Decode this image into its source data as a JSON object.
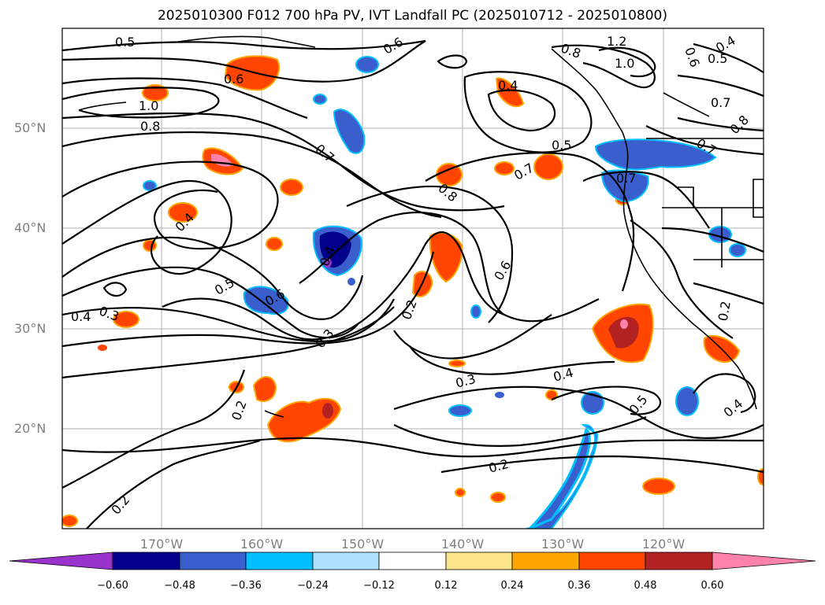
{
  "title": "2025010300 F012 700 hPa PV, IVT Landfall PC (2025010712 - 2025010800)",
  "lat_labels": [
    "50°N",
    "40°N",
    "30°N",
    "20°N"
  ],
  "lon_labels": [
    "170°W",
    "160°W",
    "150°W",
    "140°W",
    "130°W",
    "120°W"
  ],
  "colorbar": {
    "ticks": [
      "−0.60",
      "−0.48",
      "−0.36",
      "−0.24",
      "−0.12",
      "0.12",
      "0.24",
      "0.36",
      "0.48",
      "0.60"
    ],
    "colors": [
      "#9a33cc",
      "#00008b",
      "#3a5fcd",
      "#00bfff",
      "#b0e2ff",
      "#ffffff",
      "#fde68a",
      "#ffa500",
      "#ff4500",
      "#b22222",
      "#ff82ab"
    ]
  },
  "contour_labels": [
    {
      "text": "0.5"
    },
    {
      "text": "0.6"
    },
    {
      "text": "1.2"
    },
    {
      "text": "0.4"
    },
    {
      "text": "0.5"
    },
    {
      "text": "0.8"
    },
    {
      "text": "1.0"
    },
    {
      "text": "0.6"
    },
    {
      "text": "0.6"
    },
    {
      "text": "0.4"
    },
    {
      "text": "0.7"
    },
    {
      "text": "0.8"
    },
    {
      "text": "1.0"
    },
    {
      "text": "0.8"
    },
    {
      "text": "0.7"
    },
    {
      "text": "0.5"
    },
    {
      "text": "0.7"
    },
    {
      "text": "0.7"
    },
    {
      "text": "0.8"
    },
    {
      "text": "0.7"
    },
    {
      "text": "0.4"
    },
    {
      "text": "0.4"
    },
    {
      "text": "0.6"
    },
    {
      "text": "0.5"
    },
    {
      "text": "0.6"
    },
    {
      "text": "0.3"
    },
    {
      "text": "0.4"
    },
    {
      "text": "0.3"
    },
    {
      "text": "0.2"
    },
    {
      "text": "0.3"
    },
    {
      "text": "0.4"
    },
    {
      "text": "0.5"
    },
    {
      "text": "0.2"
    },
    {
      "text": "0.4"
    },
    {
      "text": "0.2"
    },
    {
      "text": "0.2"
    },
    {
      "text": "0.2"
    }
  ]
}
